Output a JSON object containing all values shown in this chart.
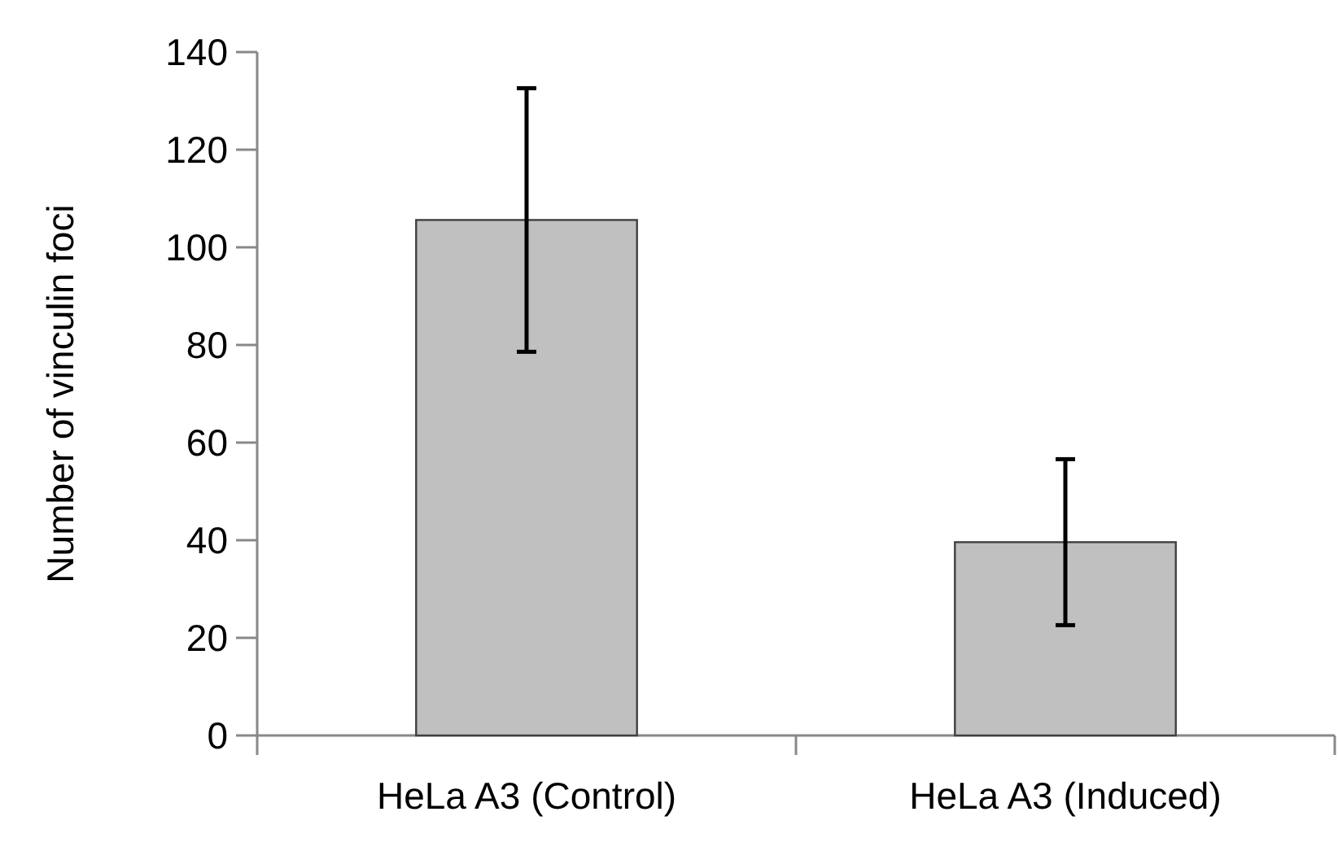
{
  "chart_data": {
    "type": "bar",
    "ylabel": "Number of vinculin foci",
    "categories": [
      "HeLa A3 (Control)",
      "HeLa A3 (Induced)"
    ],
    "values": [
      105.6,
      39.6
    ],
    "errors": [
      27,
      17
    ],
    "color": "#c0c0c0",
    "ylim": [
      0,
      140
    ],
    "yticks": [
      0,
      20,
      40,
      60,
      80,
      100,
      120,
      140
    ],
    "grid": false
  }
}
